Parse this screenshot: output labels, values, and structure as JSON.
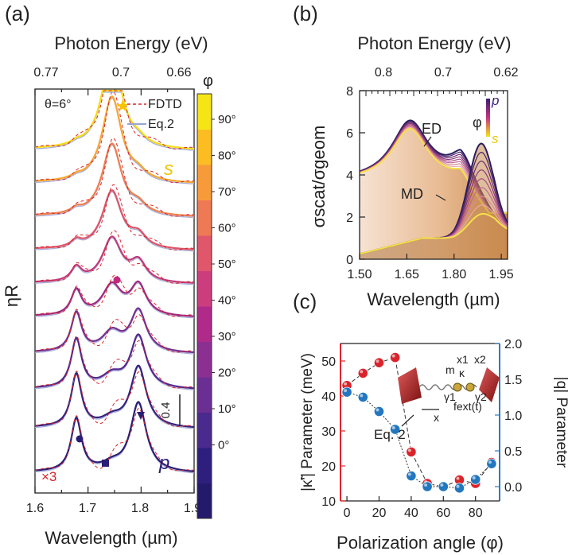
{
  "panels": {
    "a": "(a)",
    "b": "(b)",
    "c": "(c)"
  },
  "chart_data": [
    {
      "panel": "a",
      "type": "line",
      "xlabel": "Wavelength (µm)",
      "ylabel": "ηR",
      "top_xlabel": "Photon Energy (eV)",
      "top_ticks": [
        "0.77",
        "0.7",
        "0.66"
      ],
      "x_ticks": [
        "1.6",
        "1.7",
        "1.8",
        "1.9"
      ],
      "xlim": [
        1.6,
        1.9
      ],
      "angle_label": "θ=6°",
      "legend": [
        "FDTD",
        "Eq.2"
      ],
      "scale_bar": "0.4",
      "multiplier": "×3",
      "s_label": "s",
      "p_label": "p",
      "colorbar_title": "φ",
      "colorbar_ticks": [
        "90°",
        "80°",
        "70°",
        "60°",
        "50°",
        "40°",
        "30°",
        "20°",
        "10°",
        "0°"
      ],
      "colorbar_colors": [
        "#241a6b",
        "#2e1f7f",
        "#4a2a8c",
        "#6b2f93",
        "#8c2f92",
        "#b02a8a",
        "#cc3d7d",
        "#e0566b",
        "#ee7a55",
        "#f79b3a",
        "#fbbd22",
        "#f5e516"
      ],
      "ed_peak_um": 1.745,
      "md_peak_um": 1.795,
      "lower_peak_um": 1.678,
      "series": [
        {
          "phi": 0,
          "color": "#2a1e74",
          "offset": 0.05,
          "ed": 0.12,
          "md": 1.25,
          "low": 0.95
        },
        {
          "phi": 10,
          "color": "#35237f",
          "offset": 0.85,
          "ed": 0.15,
          "md": 1.1,
          "low": 0.95
        },
        {
          "phi": 20,
          "color": "#53288c",
          "offset": 1.55,
          "ed": 0.22,
          "md": 0.95,
          "low": 0.88
        },
        {
          "phi": 30,
          "color": "#74308f",
          "offset": 2.2,
          "ed": 0.35,
          "md": 0.75,
          "low": 0.7
        },
        {
          "phi": 40,
          "color": "#a0287f",
          "offset": 2.85,
          "ed": 0.55,
          "md": 0.55,
          "low": 0.45
        },
        {
          "phi": 50,
          "color": "#c23a78",
          "offset": 3.45,
          "ed": 0.8,
          "md": 0.35,
          "low": 0.25
        },
        {
          "phi": 60,
          "color": "#dd5467",
          "offset": 4.05,
          "ed": 1.05,
          "md": 0.22,
          "low": 0.12
        },
        {
          "phi": 70,
          "color": "#ef7e4d",
          "offset": 4.65,
          "ed": 1.3,
          "md": 0.15,
          "low": 0.08
        },
        {
          "phi": 80,
          "color": "#f8a62f",
          "offset": 5.25,
          "ed": 1.55,
          "md": 0.12,
          "low": 0.05
        },
        {
          "phi": 90,
          "color": "#f4dc1a",
          "offset": 5.85,
          "ed": 1.75,
          "md": 0.1,
          "low": 0.05
        }
      ]
    },
    {
      "panel": "b",
      "type": "area",
      "xlabel": "Wavelength (µm)",
      "ylabel": "σscat/σgeom",
      "top_xlabel": "Photon Energy (eV)",
      "top_ticks": [
        "0.8",
        "0.7",
        "0.62"
      ],
      "x_ticks": [
        "1.50",
        "1.65",
        "1.80",
        "1.95"
      ],
      "y_ticks": [
        "0",
        "2",
        "4",
        "6",
        "8"
      ],
      "xlim": [
        1.5,
        1.97
      ],
      "ylim": [
        0,
        8
      ],
      "labels": {
        "ed": "ED",
        "md": "MD",
        "phi": "φ",
        "p": "p",
        "s": "s"
      },
      "curves": [
        {
          "name": "p",
          "color": "#2a1e5e",
          "ed_top": 6.5,
          "md_top": 4.95
        },
        {
          "name": "s",
          "color": "#f5e04a",
          "ed_top": 6.2,
          "md_top": 3.7
        }
      ]
    },
    {
      "panel": "c",
      "type": "scatter",
      "xlabel": "Polarization angle (φ)",
      "ylabel_left": "|κ̃'| Parameter (meV)",
      "ylabel_right": "|q| Parameter",
      "x_ticks": [
        "0",
        "20",
        "40",
        "60",
        "80"
      ],
      "y_left_ticks": [
        "10",
        "20",
        "30",
        "40",
        "50"
      ],
      "y_right_ticks": [
        "0.0",
        "0.5",
        "1.0",
        "1.5",
        "2.0"
      ],
      "xlim": [
        -4,
        95
      ],
      "ylim_left": [
        10,
        55
      ],
      "ylim_right": [
        -0.2,
        2.0
      ],
      "eq_label": "Eq. 2",
      "inset": {
        "m": "m",
        "kappa": "κ",
        "x1": "x1",
        "x2": "x2",
        "g1": "γ1",
        "g2": "γ2",
        "f": "fext(t)",
        "x": "x"
      },
      "series": [
        {
          "name": "|κ̃'|",
          "axis": "left",
          "color": "#d9242b",
          "x": [
            0,
            10,
            20,
            30,
            40,
            50,
            60,
            70,
            80,
            90
          ],
          "y": [
            43,
            46.5,
            49.5,
            51,
            24,
            15,
            14,
            16,
            15,
            21
          ]
        },
        {
          "name": "|q|",
          "axis": "right",
          "color": "#2277bf",
          "x": [
            0,
            10,
            20,
            30,
            40,
            50,
            60,
            70,
            80,
            90
          ],
          "y": [
            1.32,
            1.25,
            1.05,
            0.8,
            0.15,
            0.0,
            0.0,
            -0.02,
            0.1,
            0.32
          ]
        }
      ]
    }
  ]
}
